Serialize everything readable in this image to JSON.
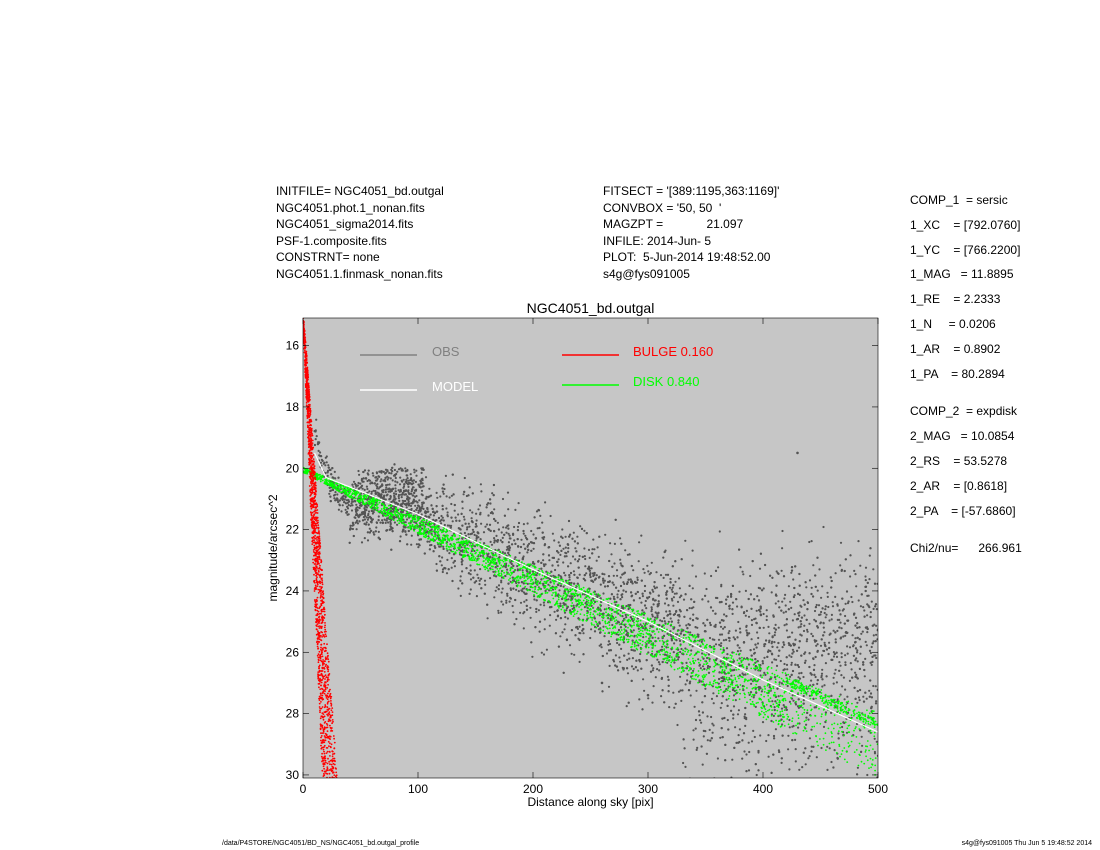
{
  "header": {
    "left": [
      "INITFILE= NGC4051_bd.outgal",
      "NGC4051.phot.1_nonan.fits",
      "NGC4051_sigma2014.fits",
      "PSF-1.composite.fits",
      "CONSTRNT= none",
      "NGC4051.1.finmask_nonan.fits"
    ],
    "middle": [
      "FITSECT = '[389:1195,363:1169]'",
      "CONVBOX = '50, 50  '",
      "MAGZPT =             21.097",
      "INFILE: 2014-Jun- 5",
      "PLOT:  5-Jun-2014 19:48:52.00",
      "s4g@fys091005"
    ]
  },
  "components": {
    "comp1": [
      "COMP_1  = sersic",
      "1_XC    = [792.0760]",
      "1_YC    = [766.2200]",
      "1_MAG   = 11.8895",
      "1_RE    = 2.2333",
      "1_N     = 0.0206",
      "1_AR    = 0.8902",
      "1_PA    = 80.2894"
    ],
    "comp2": [
      "COMP_2  = expdisk",
      "2_MAG   = 10.0854",
      "2_RS    = 53.5278",
      "2_AR    = [0.8618]",
      "2_PA    = [-57.6860]"
    ],
    "chi2": "Chi2/nu=      266.961"
  },
  "footer": {
    "path": "/data/P4STORE/NGC4051/BD_NS/NGC4051_bd.outgal_profile",
    "stamp": "s4g@fys091005  Thu Jun  5 19:48:52 2014"
  },
  "colors": {
    "plot_bg": "#c6c6c6",
    "obs": "#545454",
    "obs_legend": "#808080",
    "model": "#ffffff",
    "bulge": "#ff0000",
    "disk": "#00ff00"
  },
  "chart_data": {
    "type": "scatter",
    "title": "NGC4051_bd.outgal",
    "xlabel": "Distance along sky [pix]",
    "ylabel": "magnitude/arcsec^2",
    "xlim": [
      0,
      500
    ],
    "ylim": [
      30.1,
      15.1
    ],
    "y_inverted": true,
    "xticks": [
      0,
      100,
      200,
      300,
      400,
      500
    ],
    "yticks": [
      16,
      18,
      20,
      22,
      24,
      26,
      28,
      30
    ],
    "grid": false,
    "legend_position": "top",
    "series": [
      {
        "name": "OBS",
        "description": "dense scatter of observed surface brightness",
        "points": [
          [
            12,
            18.8
          ],
          [
            15,
            19.6
          ],
          [
            20,
            20.1
          ],
          [
            25,
            20.5
          ],
          [
            30,
            20.8
          ],
          [
            40,
            21.2
          ],
          [
            50,
            21.4
          ],
          [
            60,
            21.3
          ],
          [
            70,
            21.0
          ],
          [
            80,
            21.2
          ],
          [
            100,
            21.6
          ],
          [
            120,
            22.0
          ],
          [
            150,
            22.5
          ],
          [
            180,
            23.0
          ],
          [
            200,
            23.5
          ],
          [
            250,
            24.3
          ],
          [
            300,
            25.0
          ],
          [
            350,
            25.6
          ],
          [
            380,
            25.8
          ],
          [
            400,
            25.6
          ],
          [
            450,
            25.3
          ],
          [
            500,
            25.2
          ],
          [
            430,
            19.5
          ],
          [
            330,
            26.5
          ],
          [
            300,
            27.4
          ],
          [
            260,
            27.0
          ],
          [
            420,
            27.8
          ],
          [
            470,
            28.7
          ]
        ]
      },
      {
        "name": "MODEL",
        "points": [
          [
            10,
            19.5
          ],
          [
            20,
            20.3
          ],
          [
            40,
            20.6
          ],
          [
            100,
            21.5
          ],
          [
            200,
            23.3
          ],
          [
            300,
            25.0
          ],
          [
            400,
            26.9
          ],
          [
            500,
            28.6
          ]
        ]
      },
      {
        "name": "BULGE",
        "label": "BULGE  0.160",
        "points": [
          [
            0,
            15.1
          ],
          [
            2,
            16.2
          ],
          [
            4,
            17.5
          ],
          [
            6,
            18.8
          ],
          [
            8,
            20.2
          ],
          [
            10,
            21.6
          ],
          [
            13,
            23.4
          ],
          [
            16,
            25.4
          ],
          [
            19,
            27.3
          ],
          [
            22,
            29.2
          ],
          [
            23,
            30.1
          ]
        ]
      },
      {
        "name": "DISK",
        "label": "DISK  0.840",
        "points": [
          [
            0,
            20.05
          ],
          [
            50,
            20.95
          ],
          [
            100,
            21.85
          ],
          [
            200,
            23.65
          ],
          [
            300,
            25.45
          ],
          [
            400,
            27.25
          ],
          [
            450,
            28.15
          ],
          [
            500,
            29.05
          ]
        ]
      }
    ],
    "legend": [
      {
        "label": "OBS",
        "color": "#808080"
      },
      {
        "label": "MODEL",
        "color": "#ffffff"
      },
      {
        "label": "BULGE  0.160",
        "color": "#ff0000"
      },
      {
        "label": "DISK  0.840",
        "color": "#00ff00"
      }
    ]
  }
}
